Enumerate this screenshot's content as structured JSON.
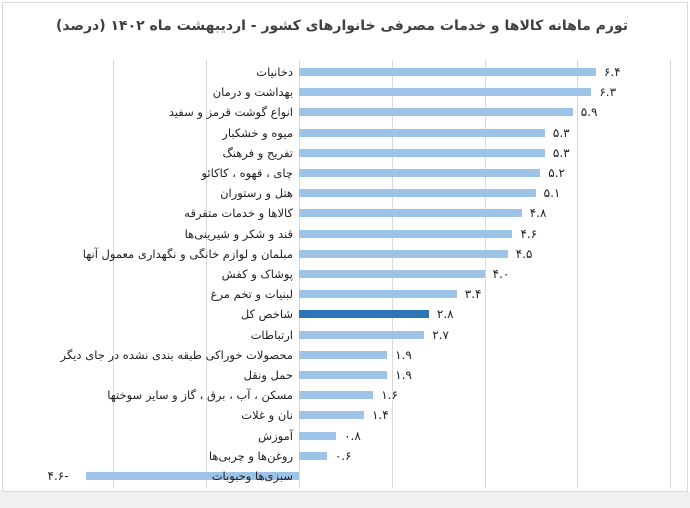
{
  "chart_data": {
    "type": "bar",
    "orientation": "horizontal",
    "title": "تورم ماهانه کالاها و خدمات مصرفی خانوارهای کشور - اردیبهشت ماه ۱۴۰۲ (درصد)",
    "xlabel": "",
    "ylabel": "",
    "xlim": [
      -4,
      8
    ],
    "grid": true,
    "legend": null,
    "highlight_category": "شاخص کل",
    "colors": {
      "bar": "#9DC3E6",
      "highlight": "#2E75B6",
      "grid": "#D9D9D9",
      "text": "#222222"
    },
    "categories": [
      "دخانیات",
      "بهداشت و درمان",
      "انواع گوشت قرمز و سفید",
      "میوه و خشکبار",
      "تفریح و فرهنگ",
      "چای ، قهوه ، کاکائو",
      "هتل و رستوران",
      "کالاها و خدمات متفرقه",
      "قند و شکر و شیرینی‌ها",
      "مبلمان و لوازم خانگی و نگهداری معمول آنها",
      "پوشاک و کفش",
      "لبنیات و تخم مرغ",
      "شاخص کل",
      "ارتباطات",
      "محصولات خوراکی طبقه بندی نشده در جای دیگر",
      "حمل ونقل",
      "مسکن ، آب ، برق ، گاز و سایر سوختها",
      "نان و غلات",
      "آموزش",
      "روغن‌ها و چربی‌ها",
      "سبزی‌ها وحبوبات"
    ],
    "values": [
      6.4,
      6.3,
      5.9,
      5.3,
      5.3,
      5.2,
      5.1,
      4.8,
      4.6,
      4.5,
      4.0,
      3.4,
      2.8,
      2.7,
      1.9,
      1.9,
      1.6,
      1.4,
      0.8,
      0.6,
      -4.6
    ],
    "value_labels": [
      "۶.۴",
      "۶.۳",
      "۵.۹",
      "۵.۳",
      "۵.۳",
      "۵.۲",
      "۵.۱",
      "۴.۸",
      "۴.۶",
      "۴.۵",
      "۴.۰",
      "۳.۴",
      "۲.۸",
      "۲.۷",
      "۱.۹",
      "۱.۹",
      "۱.۶",
      "۱.۴",
      "۰.۸",
      "۰.۶",
      "-۴.۶"
    ]
  }
}
